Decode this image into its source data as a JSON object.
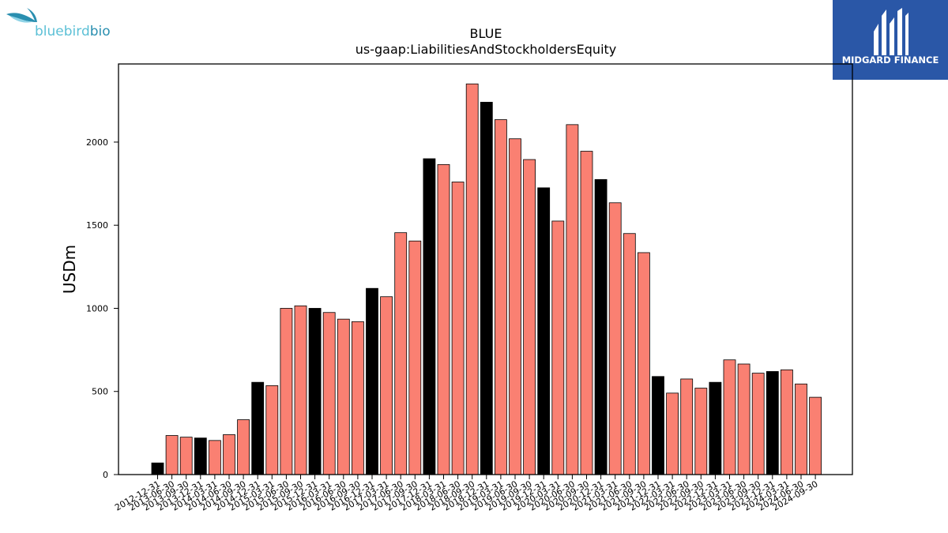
{
  "logos": {
    "left": {
      "text_main": "bluebird",
      "text_accent": "bio",
      "color_main": "#5cc0d6",
      "color_accent": "#2a8fb0"
    },
    "right": {
      "text": "MIDGARD FINANCE",
      "background": "#2a57a7"
    }
  },
  "colors": {
    "annual": "#000000",
    "quarterly": "#fa8072",
    "edge": "#000000"
  },
  "chart_data": {
    "type": "bar",
    "title": "BLUE",
    "subtitle": "us-gaap:LiabilitiesAndStockholdersEquity",
    "xlabel": "",
    "ylabel": "USDm",
    "ylim": [
      0,
      2470
    ],
    "yticks": [
      0,
      500,
      1000,
      1500,
      2000
    ],
    "grid": false,
    "categories": [
      "2012-12-31",
      "2013-06-30",
      "2013-09-30",
      "2013-12-31",
      "2014-03-31",
      "2014-06-30",
      "2014-09-30",
      "2014-12-31",
      "2015-03-31",
      "2015-06-30",
      "2015-09-30",
      "2015-12-31",
      "2016-03-31",
      "2016-06-30",
      "2016-09-30",
      "2016-12-31",
      "2017-03-31",
      "2017-06-30",
      "2017-09-30",
      "2017-12-31",
      "2018-03-31",
      "2018-06-30",
      "2018-09-30",
      "2018-12-31",
      "2019-03-31",
      "2019-06-30",
      "2019-09-30",
      "2019-12-31",
      "2020-03-31",
      "2020-06-30",
      "2020-09-30",
      "2020-12-31",
      "2021-03-31",
      "2021-06-30",
      "2021-09-30",
      "2021-12-31",
      "2022-03-31",
      "2022-06-30",
      "2022-09-30",
      "2022-12-31",
      "2023-03-31",
      "2023-06-30",
      "2023-09-30",
      "2023-12-31",
      "2024-03-31",
      "2024-06-30",
      "2024-09-30"
    ],
    "values": [
      70,
      235,
      225,
      220,
      205,
      240,
      330,
      555,
      535,
      1000,
      1015,
      1000,
      975,
      935,
      920,
      1120,
      1070,
      1455,
      1405,
      1900,
      1865,
      1760,
      2350,
      2240,
      2135,
      2020,
      1895,
      1725,
      1525,
      2105,
      1945,
      1775,
      1635,
      1450,
      1335,
      590,
      490,
      575,
      520,
      555,
      690,
      665,
      610,
      620,
      630,
      545,
      465
    ],
    "annual_flags": [
      true,
      false,
      false,
      true,
      false,
      false,
      false,
      true,
      false,
      false,
      false,
      true,
      false,
      false,
      false,
      true,
      false,
      false,
      false,
      true,
      false,
      false,
      false,
      true,
      false,
      false,
      false,
      true,
      false,
      false,
      false,
      true,
      false,
      false,
      false,
      true,
      false,
      false,
      false,
      true,
      false,
      false,
      false,
      true,
      false,
      false,
      false
    ]
  }
}
